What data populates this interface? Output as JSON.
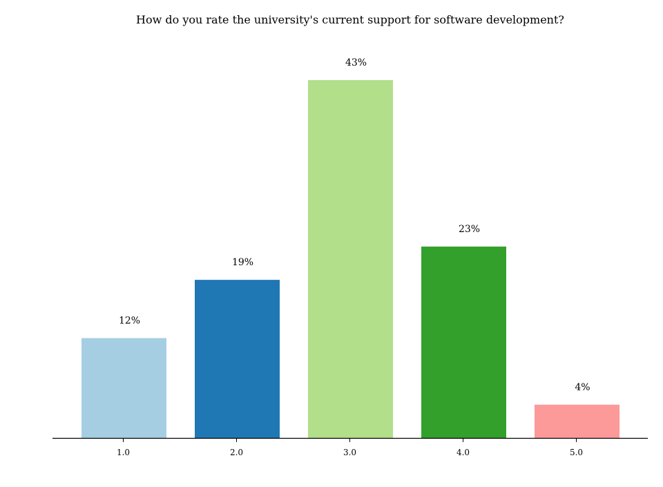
{
  "chart_data": {
    "type": "bar",
    "title": "How do you rate the university's current support for software development?",
    "xlabel": "",
    "ylabel": "",
    "categories": [
      "1.0",
      "2.0",
      "3.0",
      "4.0",
      "5.0"
    ],
    "values": [
      12,
      19,
      43,
      23,
      4
    ],
    "labels": [
      "12%",
      "19%",
      "43%",
      "23%",
      "4%"
    ],
    "colors": [
      "#a6cee3",
      "#1f78b4",
      "#b2df8a",
      "#33a02c",
      "#fb9a99"
    ],
    "ylim": [
      0,
      43
    ],
    "grid": false,
    "legend": "none"
  }
}
